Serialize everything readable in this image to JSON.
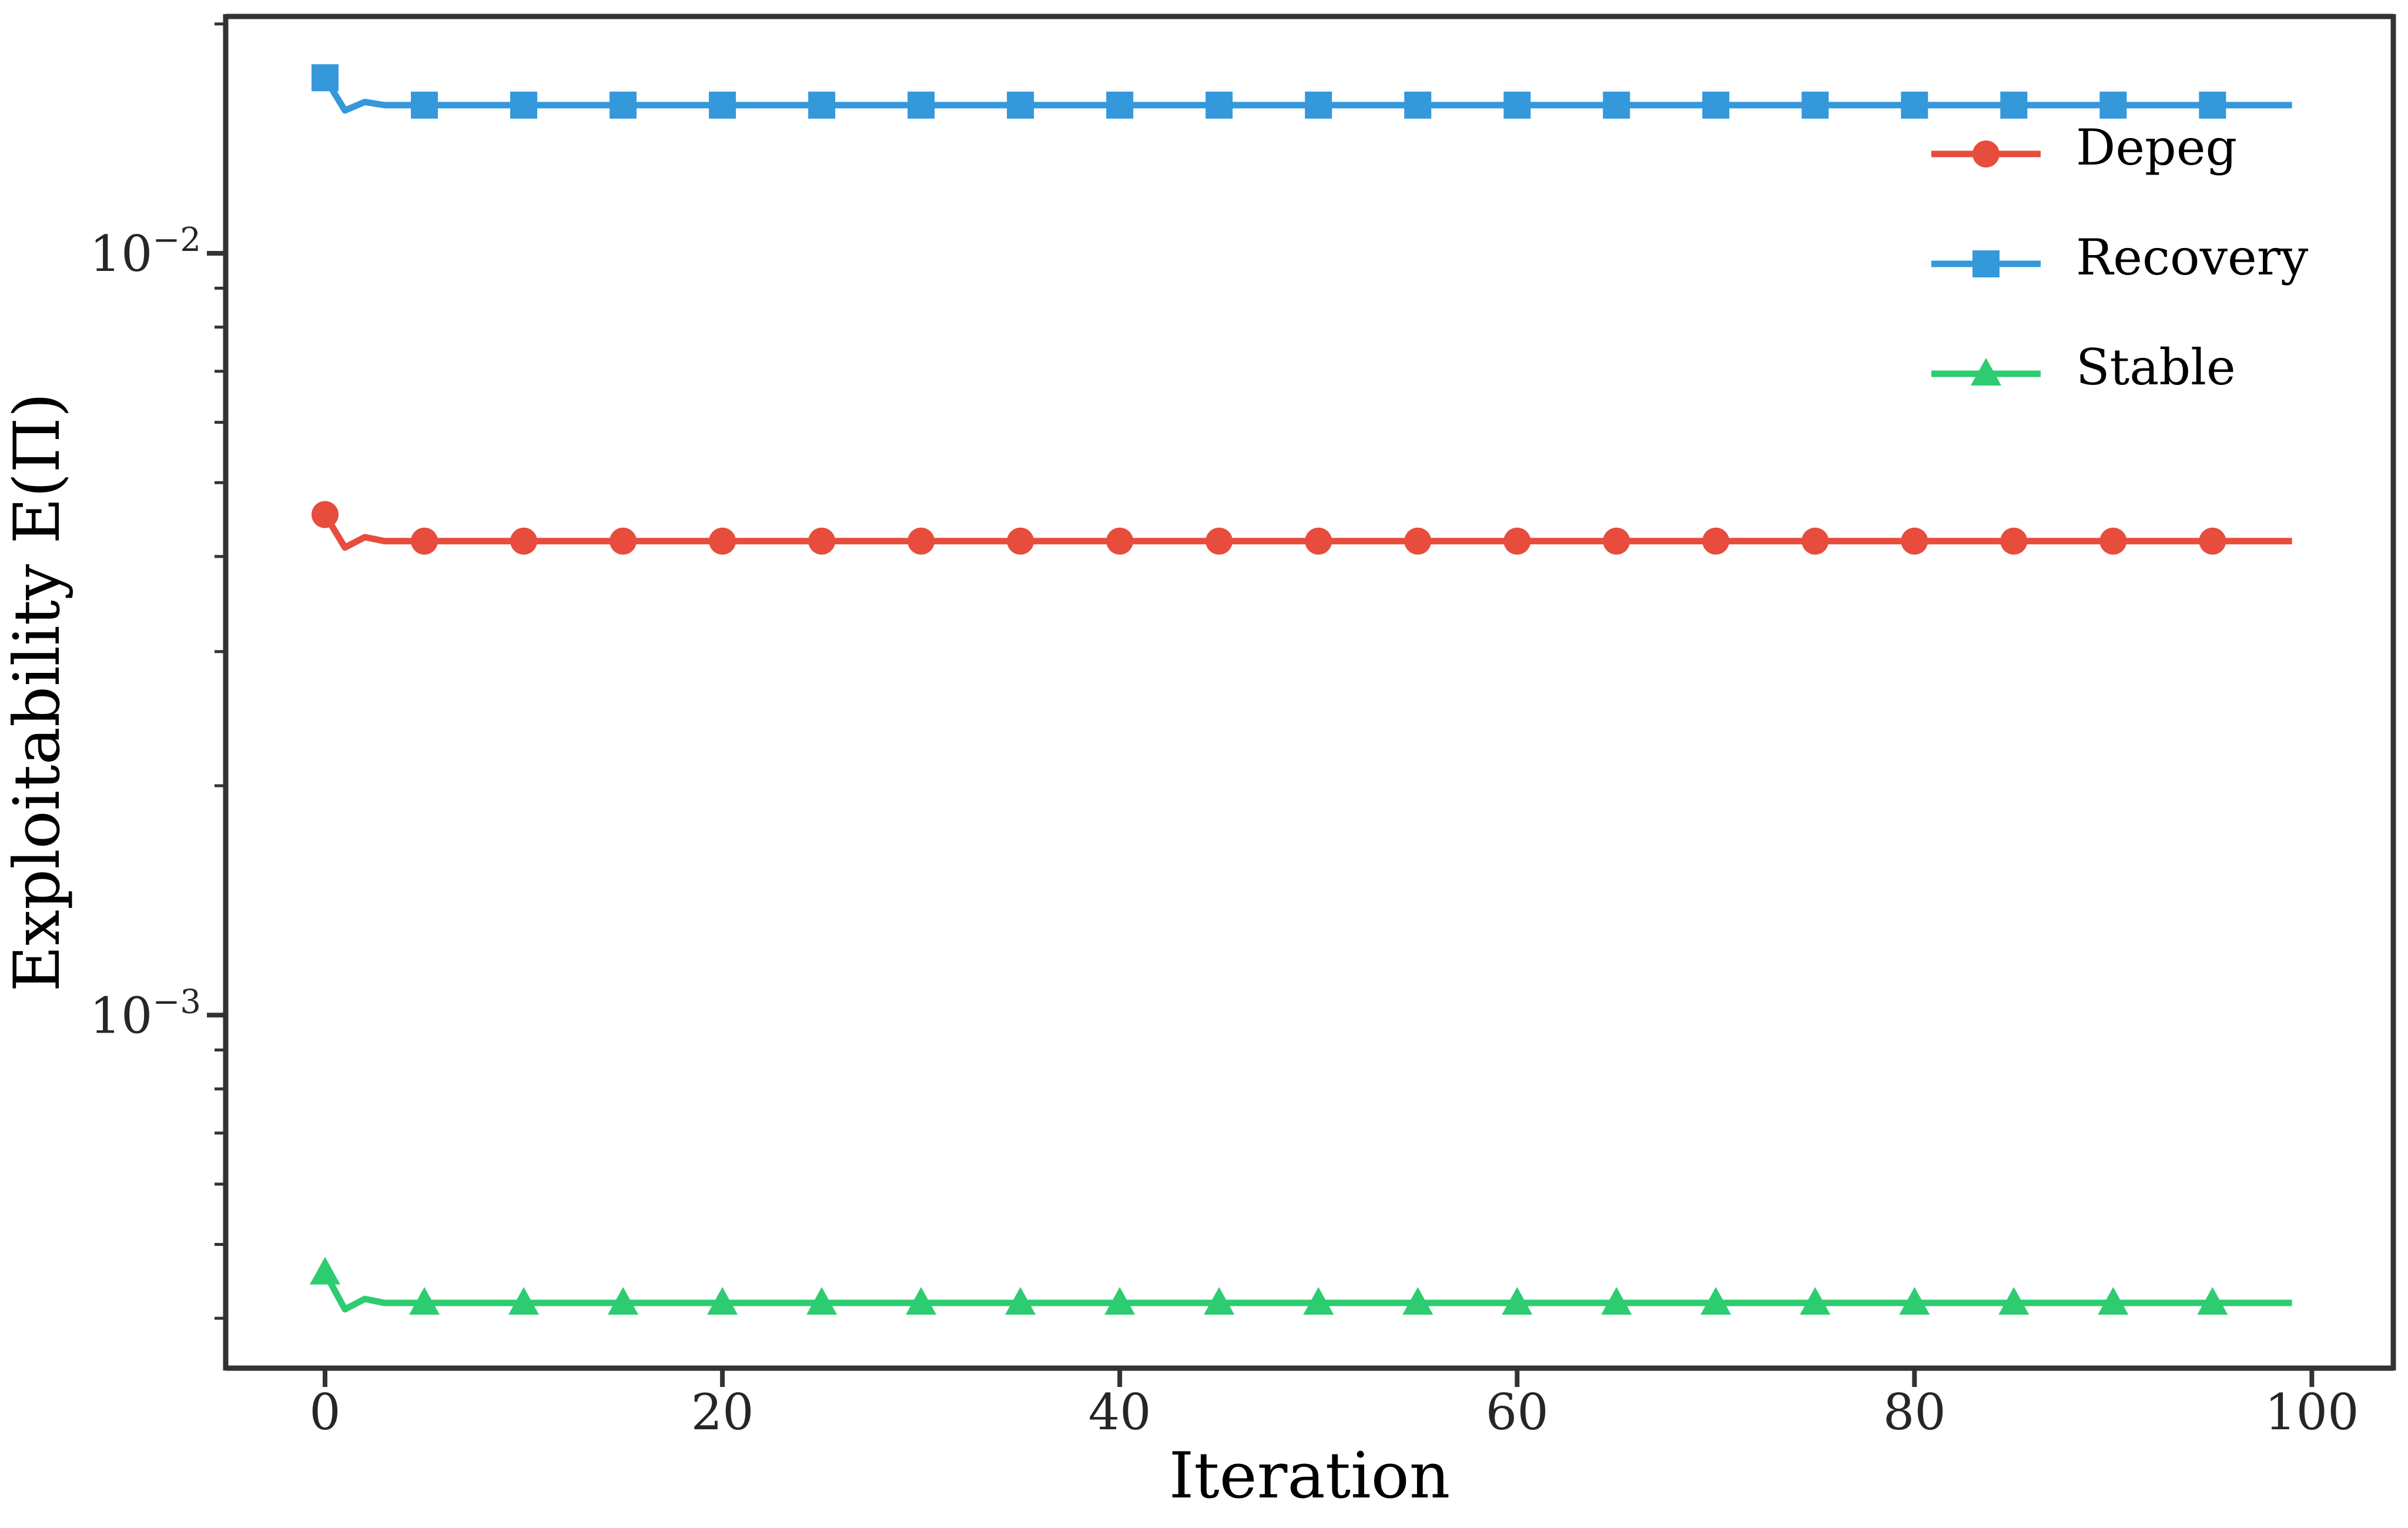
{
  "chart_data": {
    "type": "line",
    "title": "",
    "xlabel": "Iteration",
    "ylabel": "Exploitability E(Π)",
    "xscale": "linear",
    "yscale": "log",
    "xlim": [
      -5,
      104.1
    ],
    "ylim": [
      0.000344,
      0.02046
    ],
    "grid": false,
    "legend_position": "upper-right",
    "x_ticks": [
      {
        "value": 0,
        "label": "0"
      },
      {
        "value": 20,
        "label": "20"
      },
      {
        "value": 40,
        "label": "40"
      },
      {
        "value": 60,
        "label": "60"
      },
      {
        "value": 80,
        "label": "80"
      },
      {
        "value": 100,
        "label": "100"
      }
    ],
    "y_major_ticks": [
      {
        "value": 0.01,
        "base": "10",
        "exp": "−2"
      },
      {
        "value": 0.001,
        "base": "10",
        "exp": "−3"
      }
    ],
    "y_minor_ticks": [
      0.02,
      0.009,
      0.008,
      0.007,
      0.006,
      0.005,
      0.004,
      0.003,
      0.002,
      0.0009,
      0.0008,
      0.0007,
      0.0006,
      0.0005,
      0.0004
    ],
    "series": [
      {
        "name": "Depeg",
        "color": "#e74c3c",
        "marker": "circle",
        "marker_every": 5,
        "points": [
          [
            0,
            0.00454
          ],
          [
            1,
            0.00411
          ],
          [
            2,
            0.00424
          ],
          [
            3,
            0.00419
          ],
          [
            99,
            0.00419
          ]
        ]
      },
      {
        "name": "Recovery",
        "color": "#3498db",
        "marker": "square",
        "marker_every": 5,
        "points": [
          [
            0,
            0.017
          ],
          [
            1,
            0.0154
          ],
          [
            2,
            0.0158
          ],
          [
            3,
            0.01565
          ],
          [
            99,
            0.01565
          ]
        ]
      },
      {
        "name": "Stable",
        "color": "#2ecc71",
        "marker": "triangle",
        "marker_every": 5,
        "points": [
          [
            0,
            0.000459
          ],
          [
            1,
            0.000411
          ],
          [
            2,
            0.000424
          ],
          [
            3,
            0.000419
          ],
          [
            99,
            0.000419
          ]
        ]
      }
    ],
    "legend_order": [
      "Depeg",
      "Recovery",
      "Stable"
    ]
  }
}
